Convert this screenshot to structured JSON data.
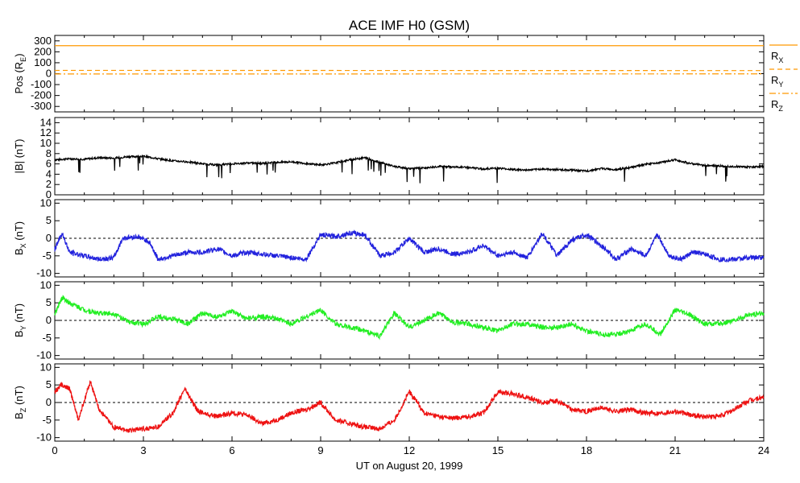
{
  "chart_data": {
    "title": "ACE IMF H0 (GSM)",
    "xlabel": "UT on August 20, 1999",
    "x_ticks": [
      "0",
      "3",
      "6",
      "9",
      "12",
      "15",
      "18",
      "21",
      "24"
    ],
    "xlim": [
      0,
      24
    ],
    "panels": [
      {
        "type": "line",
        "ylabel_main": "Pos (R",
        "ylabel_sub": "E",
        "ylabel_end": ")",
        "ylim": [
          -350,
          350
        ],
        "y_ticks": [
          "300",
          "200",
          "100",
          "0",
          "-100",
          "-200",
          "-300"
        ],
        "y_tick_values": [
          300,
          200,
          100,
          0,
          -100,
          -200,
          -300
        ],
        "zero_line": false,
        "series": [
          {
            "name": "R",
            "sub": "X",
            "color": "#ff9900",
            "dash": "solid",
            "x": [
              0,
              24
            ],
            "y": [
              256,
              256
            ]
          },
          {
            "name": "R",
            "sub": "Y",
            "color": "#ff9900",
            "dash": "dash",
            "x": [
              0,
              24
            ],
            "y": [
              30,
              28
            ]
          },
          {
            "name": "R",
            "sub": "Z",
            "color": "#ff9900",
            "dash": "dashdot",
            "x": [
              0,
              24
            ],
            "y": [
              -3,
              -2
            ]
          }
        ]
      },
      {
        "type": "line",
        "ylabel_main": "|B| (nT)",
        "ylabel_sub": "",
        "ylabel_end": "",
        "ylim": [
          0,
          15
        ],
        "y_ticks": [
          "14",
          "12",
          "10",
          "8",
          "6",
          "4",
          "2",
          "0"
        ],
        "y_tick_values": [
          14,
          12,
          10,
          8,
          6,
          4,
          2,
          0
        ],
        "zero_line": false,
        "series": [
          {
            "name": "|B|",
            "color": "#000000",
            "x": [
              0,
              0.5,
              1,
              1.5,
              2,
              2.5,
              3,
              3.5,
              4,
              4.5,
              5,
              5.5,
              6,
              6.5,
              7,
              7.5,
              8,
              8.5,
              9,
              9.5,
              10,
              10.5,
              11,
              11.5,
              12,
              12.5,
              13,
              13.5,
              14,
              14.5,
              15,
              15.5,
              16,
              16.5,
              17,
              17.5,
              18,
              18.5,
              19,
              19.5,
              20,
              20.5,
              21,
              21.5,
              22,
              22.5,
              23,
              23.5,
              24
            ],
            "y": [
              6.8,
              7,
              6.9,
              7.2,
              7.1,
              7.4,
              7.5,
              7,
              6.6,
              6.4,
              6,
              5.8,
              6,
              6.2,
              6.1,
              6.3,
              6.4,
              6.1,
              5.8,
              6.2,
              6.8,
              7.2,
              6.3,
              5.5,
              5.1,
              5.2,
              5.5,
              5.4,
              5.3,
              5,
              5.2,
              4.9,
              4.8,
              5,
              4.9,
              4.8,
              4.6,
              5.1,
              4.9,
              5.3,
              5.9,
              6.3,
              6.8,
              6.1,
              5.7,
              5.6,
              5.5,
              5.4,
              5.5
            ]
          }
        ]
      },
      {
        "type": "line",
        "ylabel_main": "B",
        "ylabel_sub": "X",
        "ylabel_end": " (nT)",
        "ylim": [
          -11,
          11
        ],
        "y_ticks": [
          "10",
          "5",
          "0",
          "-5",
          "-10"
        ],
        "y_tick_values": [
          10,
          5,
          0,
          -5,
          -10
        ],
        "zero_line": true,
        "series": [
          {
            "name": "BX",
            "color": "#2222dd",
            "x": [
              0,
              0.25,
              0.5,
              1,
              1.5,
              2,
              2.3,
              2.8,
              3.2,
              3.5,
              4,
              4.5,
              5,
              5.5,
              6,
              6.5,
              7,
              7.5,
              8,
              8.5,
              9,
              9.5,
              10,
              10.5,
              11,
              11.5,
              12,
              12.5,
              13,
              13.5,
              14,
              14.5,
              15,
              15.5,
              16,
              16.5,
              17,
              17.5,
              18,
              18.5,
              19,
              19.5,
              20,
              20.4,
              20.8,
              21.2,
              21.6,
              22,
              22.5,
              23,
              23.5,
              24
            ],
            "y": [
              -3,
              1.5,
              -4,
              -5,
              -6,
              -5.5,
              0,
              0.5,
              -1,
              -6,
              -5,
              -4,
              -4,
              -3,
              -5,
              -4,
              -4.5,
              -5,
              -5.5,
              -6,
              1,
              0.5,
              1.5,
              1,
              -5,
              -4,
              0,
              -4,
              -3,
              -4.5,
              -4,
              -2,
              -5,
              -4,
              -5.5,
              1.5,
              -5,
              -0.5,
              1,
              -2,
              -6,
              -3,
              -5,
              1,
              -5,
              -6,
              -4,
              -4.5,
              -6,
              -6,
              -5.5,
              -5.5
            ]
          }
        ]
      },
      {
        "type": "line",
        "ylabel_main": "B",
        "ylabel_sub": "Y",
        "ylabel_end": " (nT)",
        "ylim": [
          -11,
          11
        ],
        "y_ticks": [
          "10",
          "5",
          "0",
          "-5",
          "-10"
        ],
        "y_tick_values": [
          10,
          5,
          0,
          -5,
          -10
        ],
        "zero_line": true,
        "series": [
          {
            "name": "BY",
            "color": "#22ee22",
            "x": [
              0,
              0.25,
              0.5,
              1,
              1.5,
              2,
              2.5,
              3,
              3.5,
              4,
              4.5,
              5,
              5.5,
              6,
              6.5,
              7,
              7.5,
              8,
              8.5,
              9,
              9.5,
              10,
              10.5,
              11,
              11.5,
              12,
              12.5,
              13,
              13.5,
              14,
              14.5,
              15,
              15.5,
              16,
              16.5,
              17,
              17.5,
              18,
              18.5,
              19,
              19.5,
              20,
              20.5,
              21,
              21.5,
              22,
              22.5,
              23,
              23.5,
              24
            ],
            "y": [
              2,
              6.5,
              5,
              3,
              2,
              2,
              -0.5,
              -1,
              1,
              0.5,
              -1,
              2,
              1,
              2.5,
              0.5,
              1,
              0.5,
              -1,
              1,
              3,
              -1,
              -2,
              -3,
              -4.5,
              2,
              -2,
              0,
              2,
              -0.5,
              -1,
              -2,
              -3,
              -1,
              -1,
              -2,
              -2,
              -1,
              -3,
              -4,
              -4,
              -3,
              -1,
              -4,
              3,
              1.5,
              -1,
              -1,
              0,
              1.5,
              2
            ]
          }
        ]
      },
      {
        "type": "line",
        "ylabel_main": "B",
        "ylabel_sub": "Z",
        "ylabel_end": " (nT)",
        "ylim": [
          -11,
          11
        ],
        "y_ticks": [
          "10",
          "5",
          "0",
          "-5",
          "-10"
        ],
        "y_tick_values": [
          10,
          5,
          0,
          -5,
          -10
        ],
        "zero_line": true,
        "series": [
          {
            "name": "BZ",
            "color": "#ee1111",
            "x": [
              0,
              0.2,
              0.5,
              0.8,
              1.2,
              1.5,
              2,
              2.5,
              3,
              3.5,
              4,
              4.4,
              4.8,
              5,
              5.5,
              6,
              6.5,
              7,
              7.5,
              8,
              8.5,
              9,
              9.5,
              10,
              10.5,
              11,
              11.5,
              12,
              12.2,
              12.5,
              13,
              13.5,
              14,
              14.5,
              15,
              15.5,
              16,
              16.5,
              17,
              17.5,
              18,
              18.5,
              19,
              19.5,
              20,
              20.5,
              21,
              21.5,
              22,
              22.5,
              23,
              23.5,
              24
            ],
            "y": [
              3,
              5,
              4,
              -5,
              6,
              -2,
              -7,
              -8,
              -7.5,
              -7,
              -3,
              4,
              -2,
              -3,
              -4,
              -3,
              -3.5,
              -6,
              -5,
              -3,
              -2,
              0,
              -5,
              -6,
              -7,
              -7.5,
              -5,
              3,
              1,
              -3,
              -4,
              -4.5,
              -4,
              -3,
              3,
              2.5,
              1.5,
              0,
              0.5,
              -2,
              -2.5,
              -1.5,
              -2.5,
              -2,
              -3,
              -3,
              -2.5,
              -3.5,
              -4,
              -4,
              -2,
              0.5,
              1.5
            ]
          }
        ]
      }
    ]
  }
}
